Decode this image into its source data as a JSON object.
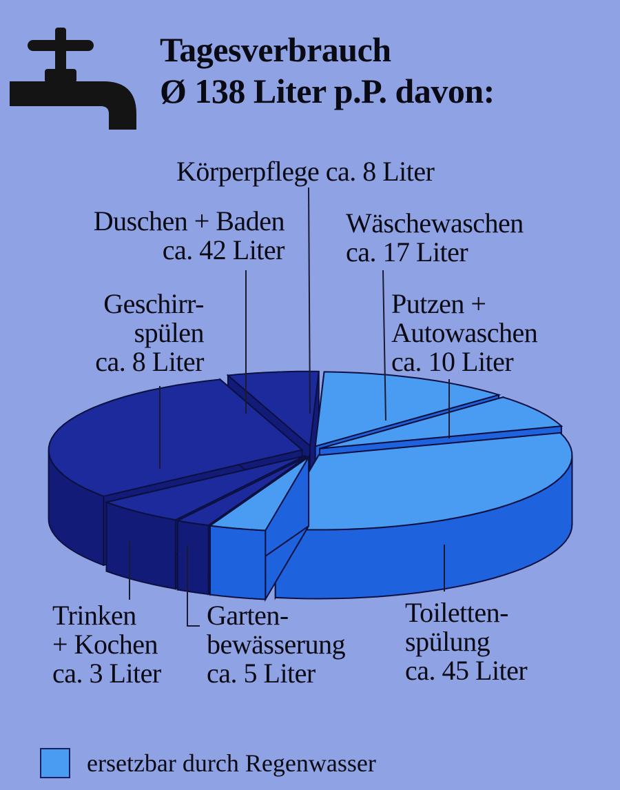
{
  "chart_data": {
    "type": "pie",
    "title": "Tagesverbrauch",
    "subtitle": "Ø 138 Liter p.P. davon:",
    "unit": "Liter",
    "style": "3d-exploded",
    "slices": [
      {
        "name": "Wäschewaschen",
        "label": [
          "Wäschewaschen",
          "ca. 17 Liter"
        ],
        "value": 17,
        "replaceable": true
      },
      {
        "name": "Putzen + Autowaschen",
        "label": [
          "Putzen +",
          "Autowaschen",
          "ca. 10 Liter"
        ],
        "value": 10,
        "replaceable": true
      },
      {
        "name": "Toilettenspülung",
        "label": [
          "Toiletten-",
          "spülung",
          "ca. 45 Liter"
        ],
        "value": 45,
        "replaceable": true
      },
      {
        "name": "Gartenbewässerung",
        "label": [
          "Garten-",
          "bewässerung",
          "ca. 5 Liter"
        ],
        "value": 5,
        "replaceable": true
      },
      {
        "name": "Trinken + Kochen",
        "label": [
          "Trinken",
          "+ Kochen",
          "ca. 3 Liter"
        ],
        "value": 3,
        "replaceable": false
      },
      {
        "name": "Geschirrspülen",
        "label": [
          "Geschirr-",
          "spülen",
          "ca. 8 Liter"
        ],
        "value": 8,
        "replaceable": false
      },
      {
        "name": "Duschen + Baden",
        "label": [
          "Duschen + Baden",
          "ca. 42 Liter"
        ],
        "value": 42,
        "replaceable": false
      },
      {
        "name": "Körperpflege",
        "label": [
          "Körperpflege ca. 8 Liter"
        ],
        "value": 8,
        "replaceable": false
      }
    ],
    "legend": {
      "label": "ersetzbar durch Regenwasser",
      "position": "bottom-left"
    },
    "colors": {
      "background": "#8fa3e4",
      "replaceable_top": "#4a9cf2",
      "replaceable_side": "#1e62de",
      "other_top": "#1c2a9c",
      "other_side": "#121c78"
    }
  },
  "icon": "water-tap-icon"
}
